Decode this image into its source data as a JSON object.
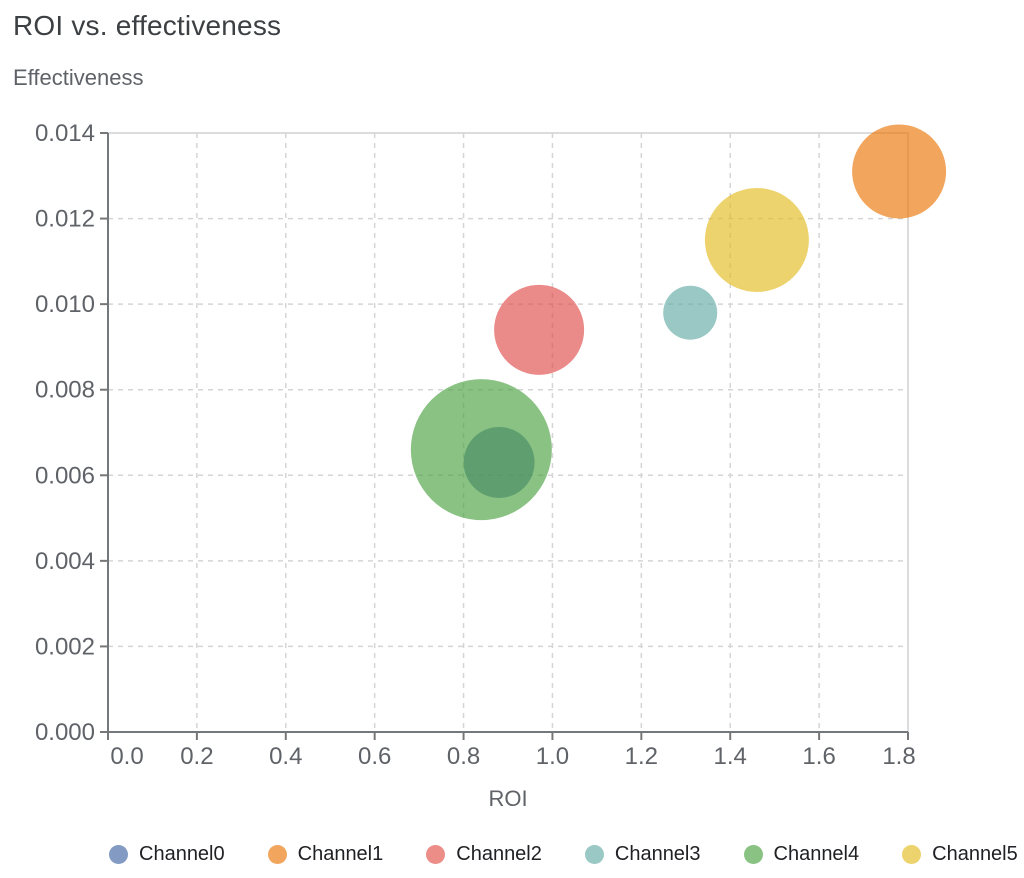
{
  "chart_data": {
    "type": "scatter",
    "subtype": "bubble",
    "title": "ROI vs. effectiveness",
    "xlabel": "ROI",
    "ylabel": "Effectiveness",
    "xlim": [
      0,
      1.8
    ],
    "ylim": [
      0,
      0.014
    ],
    "x_ticks": [
      "0.0",
      "0.2",
      "0.4",
      "0.6",
      "0.8",
      "1.0",
      "1.2",
      "1.4",
      "1.6",
      "1.8"
    ],
    "y_ticks": [
      "0.000",
      "0.002",
      "0.004",
      "0.006",
      "0.008",
      "0.010",
      "0.012",
      "0.014"
    ],
    "grid": "dashed",
    "legend_position": "bottom-center",
    "bubble_opacity": 0.65,
    "series": [
      {
        "name": "Channel0",
        "roi": 0.88,
        "effectiveness": 0.0063,
        "radius_px": 35.5,
        "color": "#4065A3",
        "legend_color": "#839BC3"
      },
      {
        "name": "Channel1",
        "roi": 1.78,
        "effectiveness": 0.0131,
        "radius_px": 47,
        "color": "#EB7504",
        "legend_color": "#F2A55C"
      },
      {
        "name": "Channel2",
        "roi": 0.97,
        "effectiveness": 0.0094,
        "radius_px": 45,
        "color": "#DF4C49",
        "legend_color": "#EC8D87"
      },
      {
        "name": "Channel3",
        "roi": 1.31,
        "effectiveness": 0.0098,
        "radius_px": 27,
        "color": "#64AAA4",
        "legend_color": "#9AC8C4"
      },
      {
        "name": "Channel4",
        "roi": 0.84,
        "effectiveness": 0.0066,
        "radius_px": 70.5,
        "color": "#4BA142",
        "legend_color": "#8AC284"
      },
      {
        "name": "Channel5",
        "roi": 1.46,
        "effectiveness": 0.0115,
        "radius_px": 52,
        "color": "#E3BB1E",
        "legend_color": "#EDD36D"
      }
    ]
  }
}
